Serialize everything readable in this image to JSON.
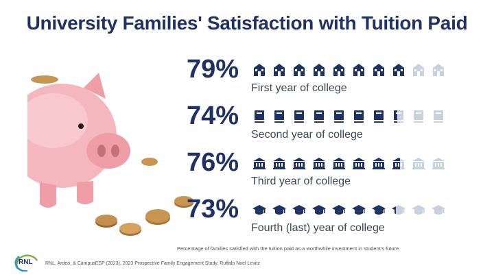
{
  "chart_data": {
    "type": "pictograph",
    "title": "University Families' Satisfaction with Tuition Paid",
    "units": "%",
    "categories": [
      "First year of college",
      "Second year of college",
      "Third year of college",
      "Fourth (last) year of college"
    ],
    "series": [
      {
        "values": [
          79,
          74,
          76,
          73
        ]
      }
    ],
    "value_labels": [
      "79%",
      "74%",
      "76%",
      "73%"
    ],
    "icons": [
      "school-icon",
      "book-icon",
      "building-icon",
      "graduation-cap-icon"
    ],
    "icons_per_row": 10,
    "colors": {
      "filled": "#1f3264",
      "empty": "#c7d1e0"
    }
  },
  "caption": "Percentage of families satisfied with the tuition paid as a worthwhile investment in student's future",
  "footer": {
    "logo": "RNL",
    "citation": "RNL, Ardeo, & CampusESP (2023). 2023 Prospective Family Engagement Study. Ruffalo Noel Levitz"
  }
}
